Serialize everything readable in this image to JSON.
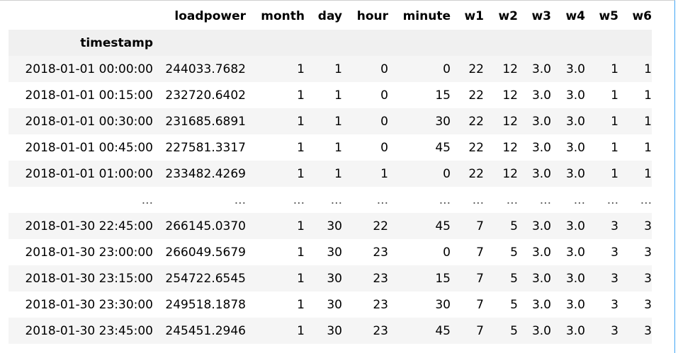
{
  "dataframe": {
    "columns": [
      "loadpower",
      "month",
      "day",
      "hour",
      "minute",
      "w1",
      "w2",
      "w3",
      "w4",
      "w5",
      "w6"
    ],
    "index_name": "timestamp",
    "rows": [
      {
        "index": "2018-01-01 00:00:00",
        "cells": [
          "244033.7682",
          "1",
          "1",
          "0",
          "0",
          "22",
          "12",
          "3.0",
          "3.0",
          "1",
          "1"
        ]
      },
      {
        "index": "2018-01-01 00:15:00",
        "cells": [
          "232720.6402",
          "1",
          "1",
          "0",
          "15",
          "22",
          "12",
          "3.0",
          "3.0",
          "1",
          "1"
        ]
      },
      {
        "index": "2018-01-01 00:30:00",
        "cells": [
          "231685.6891",
          "1",
          "1",
          "0",
          "30",
          "22",
          "12",
          "3.0",
          "3.0",
          "1",
          "1"
        ]
      },
      {
        "index": "2018-01-01 00:45:00",
        "cells": [
          "227581.3317",
          "1",
          "1",
          "0",
          "45",
          "22",
          "12",
          "3.0",
          "3.0",
          "1",
          "1"
        ]
      },
      {
        "index": "2018-01-01 01:00:00",
        "cells": [
          "233482.4269",
          "1",
          "1",
          "1",
          "0",
          "22",
          "12",
          "3.0",
          "3.0",
          "1",
          "1"
        ]
      },
      {
        "index": "...",
        "cells": [
          "...",
          "...",
          "...",
          "...",
          "...",
          "...",
          "...",
          "...",
          "...",
          "...",
          "..."
        ]
      },
      {
        "index": "2018-01-30 22:45:00",
        "cells": [
          "266145.0370",
          "1",
          "30",
          "22",
          "45",
          "7",
          "5",
          "3.0",
          "3.0",
          "3",
          "3"
        ]
      },
      {
        "index": "2018-01-30 23:00:00",
        "cells": [
          "266049.5679",
          "1",
          "30",
          "23",
          "0",
          "7",
          "5",
          "3.0",
          "3.0",
          "3",
          "3"
        ]
      },
      {
        "index": "2018-01-30 23:15:00",
        "cells": [
          "254722.6545",
          "1",
          "30",
          "23",
          "15",
          "7",
          "5",
          "3.0",
          "3.0",
          "3",
          "3"
        ]
      },
      {
        "index": "2018-01-30 23:30:00",
        "cells": [
          "249518.1878",
          "1",
          "30",
          "23",
          "30",
          "7",
          "5",
          "3.0",
          "3.0",
          "3",
          "3"
        ]
      },
      {
        "index": "2018-01-30 23:45:00",
        "cells": [
          "245451.2946",
          "1",
          "30",
          "23",
          "45",
          "7",
          "5",
          "3.0",
          "3.0",
          "3",
          "3"
        ]
      }
    ]
  }
}
